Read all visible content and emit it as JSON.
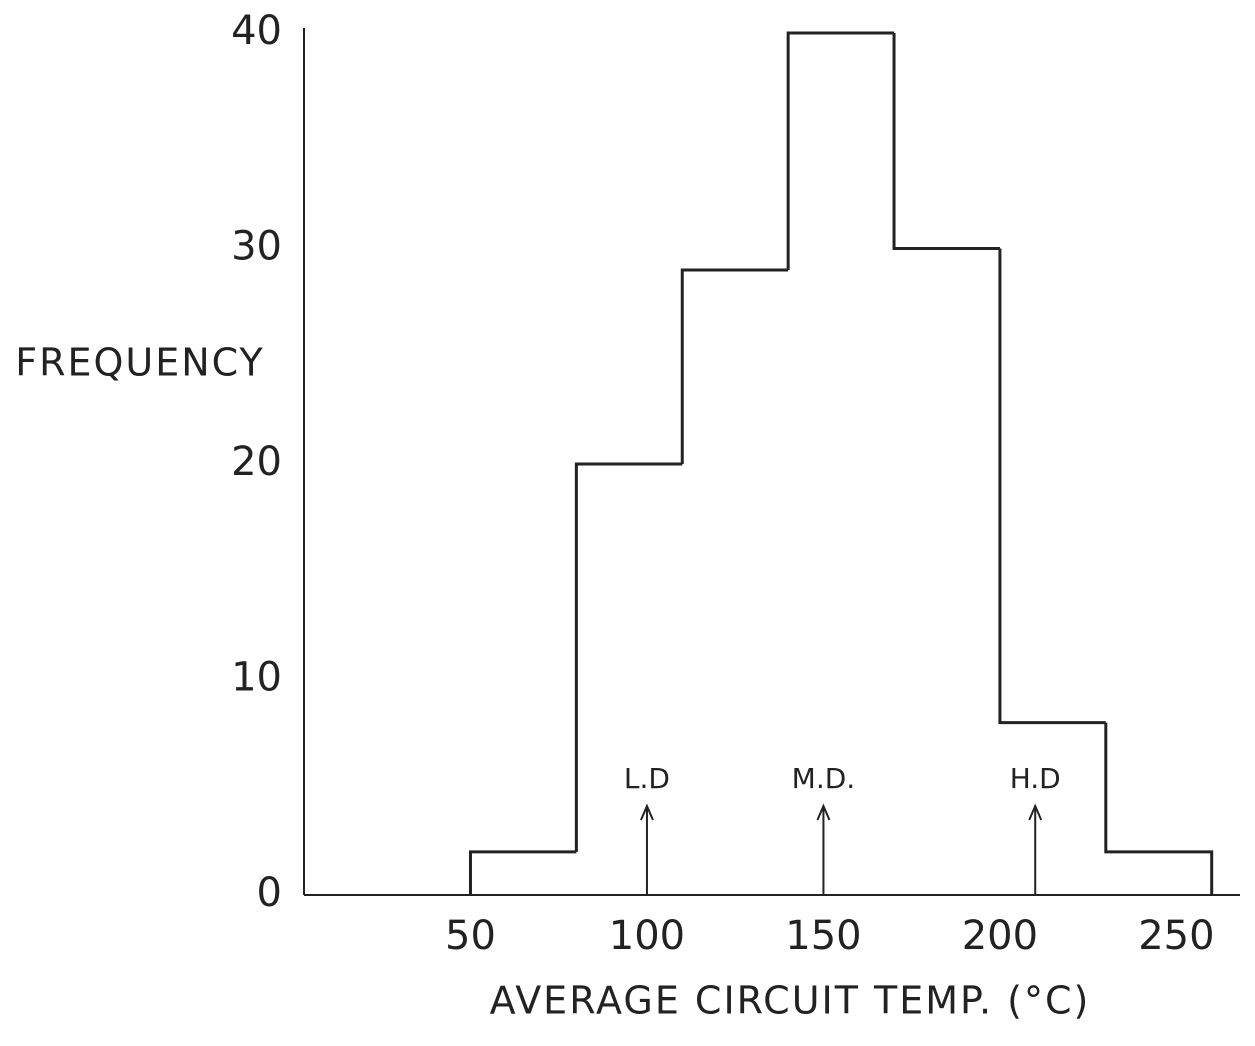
{
  "chart_data": {
    "type": "histogram",
    "xlabel": "AVERAGE CIRCUIT TEMP. (°C)",
    "ylabel": "FREQUENCY",
    "bins": [
      50,
      80,
      110,
      140,
      170,
      200,
      230,
      260
    ],
    "counts": [
      2,
      20,
      29,
      40,
      30,
      8,
      2
    ],
    "color": "#222222",
    "xlim": [
      0,
      270
    ],
    "ylim": [
      0,
      40
    ],
    "xticks": [
      50,
      100,
      150,
      200,
      250
    ],
    "yticks": [
      0,
      10,
      20,
      30,
      40
    ],
    "grid": false,
    "annotations": [
      {
        "text": "L.D",
        "x": 100
      },
      {
        "text": "M.D.",
        "x": 150
      },
      {
        "text": "H.D",
        "x": 210
      }
    ]
  }
}
